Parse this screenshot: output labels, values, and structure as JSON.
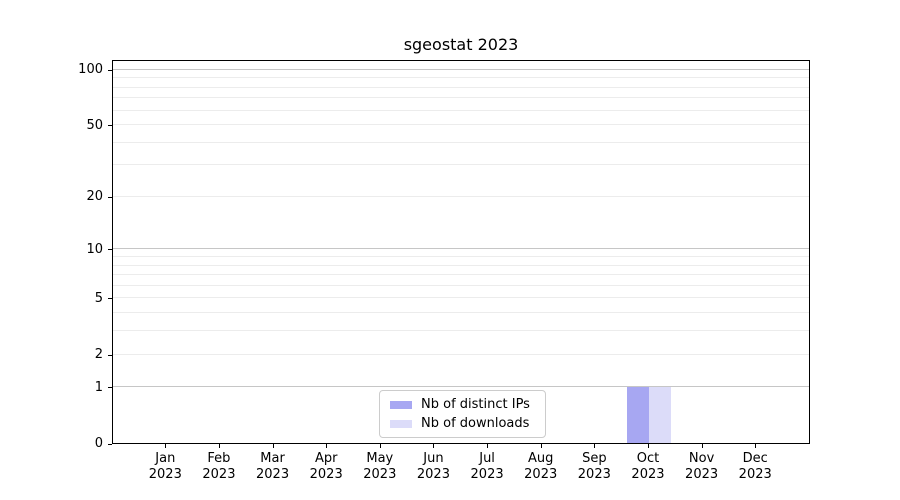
{
  "chart_data": {
    "type": "bar",
    "title": "sgeostat 2023",
    "categories": [
      "Jan",
      "Feb",
      "Mar",
      "Apr",
      "May",
      "Jun",
      "Jul",
      "Aug",
      "Sep",
      "Oct",
      "Nov",
      "Dec"
    ],
    "category_year": "2023",
    "series": [
      {
        "name": "Nb of distinct IPs",
        "color": "#a7a7f2",
        "values": [
          0,
          0,
          0,
          0,
          0,
          0,
          0,
          0,
          0,
          1,
          0,
          0
        ]
      },
      {
        "name": "Nb of downloads",
        "color": "#dcdcf9",
        "values": [
          0,
          0,
          0,
          0,
          0,
          0,
          0,
          0,
          0,
          1,
          0,
          0
        ]
      }
    ],
    "xlabel": "",
    "ylabel": "",
    "yscale": "log1p",
    "ylim": [
      0,
      113.7
    ],
    "yticks": [
      0,
      1,
      2,
      5,
      10,
      20,
      50,
      100
    ],
    "yticks_minor": [
      3,
      4,
      6,
      7,
      8,
      9,
      30,
      40,
      60,
      70,
      80,
      90
    ],
    "grid": {
      "show": true,
      "emphasized_values": [
        1,
        10,
        100
      ],
      "emphasized_color": "#c6c6c6",
      "minor_color": "#ececec"
    },
    "legend": {
      "position": "bottom-center",
      "border_color": "#cccccc"
    },
    "colors": {
      "axis": "#000000",
      "text": "#000000",
      "background": "#ffffff"
    }
  }
}
